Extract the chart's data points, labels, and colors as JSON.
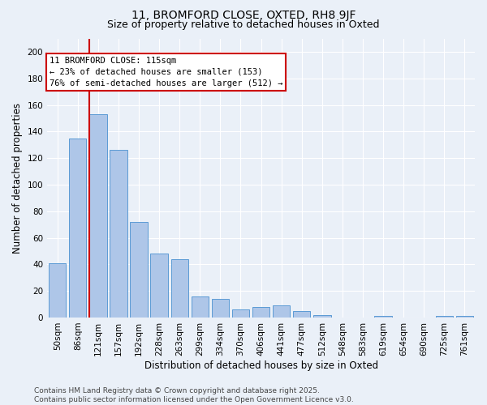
{
  "title_line1": "11, BROMFORD CLOSE, OXTED, RH8 9JF",
  "title_line2": "Size of property relative to detached houses in Oxted",
  "xlabel": "Distribution of detached houses by size in Oxted",
  "ylabel": "Number of detached properties",
  "categories": [
    "50sqm",
    "86sqm",
    "121sqm",
    "157sqm",
    "192sqm",
    "228sqm",
    "263sqm",
    "299sqm",
    "334sqm",
    "370sqm",
    "406sqm",
    "441sqm",
    "477sqm",
    "512sqm",
    "548sqm",
    "583sqm",
    "619sqm",
    "654sqm",
    "690sqm",
    "725sqm",
    "761sqm"
  ],
  "values": [
    41,
    135,
    153,
    126,
    72,
    48,
    44,
    16,
    14,
    6,
    8,
    9,
    5,
    2,
    0,
    0,
    1,
    0,
    0,
    1,
    1
  ],
  "bar_color": "#aec6e8",
  "bar_edge_color": "#5b9bd5",
  "vline_x_index": 2,
  "vline_color": "#cc0000",
  "annotation_text_line1": "11 BROMFORD CLOSE: 115sqm",
  "annotation_text_line2": "← 23% of detached houses are smaller (153)",
  "annotation_text_line3": "76% of semi-detached houses are larger (512) →",
  "annotation_box_color": "#ffffff",
  "annotation_box_edge": "#cc0000",
  "ylim": [
    0,
    210
  ],
  "yticks": [
    0,
    20,
    40,
    60,
    80,
    100,
    120,
    140,
    160,
    180,
    200
  ],
  "bg_color": "#eaf0f8",
  "grid_color": "#ffffff",
  "footer_text": "Contains HM Land Registry data © Crown copyright and database right 2025.\nContains public sector information licensed under the Open Government Licence v3.0.",
  "title_fontsize": 10,
  "subtitle_fontsize": 9,
  "axis_label_fontsize": 8.5,
  "tick_fontsize": 7.5,
  "annotation_fontsize": 7.5,
  "footer_fontsize": 6.5
}
